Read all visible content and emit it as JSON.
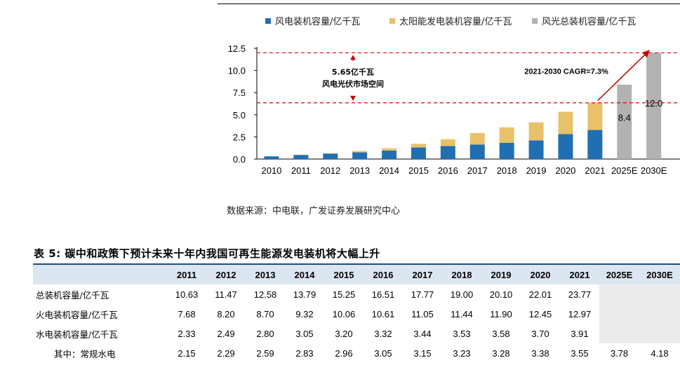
{
  "chart_data": {
    "type": "bar",
    "stacked": true,
    "categories": [
      "2010",
      "2011",
      "2012",
      "2013",
      "2014",
      "2015",
      "2016",
      "2017",
      "2018",
      "2019",
      "2020",
      "2021",
      "2025E",
      "2030E"
    ],
    "series": [
      {
        "name": "风电装机容量/亿千瓦",
        "color": "#1f6fb2",
        "values": [
          0.3,
          0.46,
          0.61,
          0.76,
          0.96,
          1.3,
          1.47,
          1.64,
          1.84,
          2.1,
          2.81,
          3.28,
          null,
          null
        ]
      },
      {
        "name": "太阳能发电装机容量/亿千瓦",
        "color": "#e8c268",
        "values": [
          0.0,
          0.03,
          0.04,
          0.15,
          0.25,
          0.42,
          0.77,
          1.3,
          1.74,
          2.04,
          2.53,
          3.06,
          null,
          null
        ]
      },
      {
        "name": "风光总装机容量/亿千瓦",
        "color": "#b2b2b2",
        "values": [
          null,
          null,
          null,
          null,
          null,
          null,
          null,
          null,
          null,
          null,
          null,
          null,
          8.4,
          12.0
        ]
      }
    ],
    "ylim": [
      0,
      12.5
    ],
    "yticks": [
      "0.0",
      "2.5",
      "5.0",
      "7.5",
      "10.0",
      "12.5"
    ],
    "data_labels": {
      "2025E": "8.4",
      "2030E": "12.0"
    },
    "reference_lines": [
      12.0,
      6.35
    ],
    "annotation_gap": {
      "line1": "5.65亿千瓦",
      "line2": "风电光伏市场空间"
    },
    "annotation_cagr": "2021-2030 CAGR=7.3%",
    "legend": "top"
  },
  "source_note": "数据来源：中电联，广发证券发展研究中心",
  "table": {
    "title": "表 5: 碳中和政策下预计未来十年内我国可再生能源发电装机将大幅上升",
    "headers": [
      "2011",
      "2012",
      "2013",
      "2014",
      "2015",
      "2016",
      "2017",
      "2018",
      "2019",
      "2020",
      "2021",
      "2025E",
      "2030E"
    ],
    "rows": [
      {
        "label": "总装机容量/亿千瓦",
        "values": [
          "10.63",
          "11.47",
          "12.58",
          "13.79",
          "15.25",
          "16.51",
          "17.77",
          "19.00",
          "20.10",
          "22.01",
          "23.77",
          "",
          ""
        ]
      },
      {
        "label": "火电装机容量/亿千瓦",
        "values": [
          "7.68",
          "8.20",
          "8.70",
          "9.32",
          "10.06",
          "10.61",
          "11.05",
          "11.44",
          "11.90",
          "12.45",
          "12.97",
          "",
          ""
        ]
      },
      {
        "label": "水电装机容量/亿千瓦",
        "values": [
          "2.33",
          "2.49",
          "2.80",
          "3.05",
          "3.20",
          "3.32",
          "3.44",
          "3.53",
          "3.58",
          "3.70",
          "3.91",
          "",
          ""
        ]
      },
      {
        "label": "其中：常规水电",
        "values": [
          "2.15",
          "2.29",
          "2.59",
          "2.83",
          "2.96",
          "3.05",
          "3.15",
          "3.23",
          "3.28",
          "3.38",
          "3.55",
          "3.78",
          "4.18"
        ]
      }
    ]
  }
}
